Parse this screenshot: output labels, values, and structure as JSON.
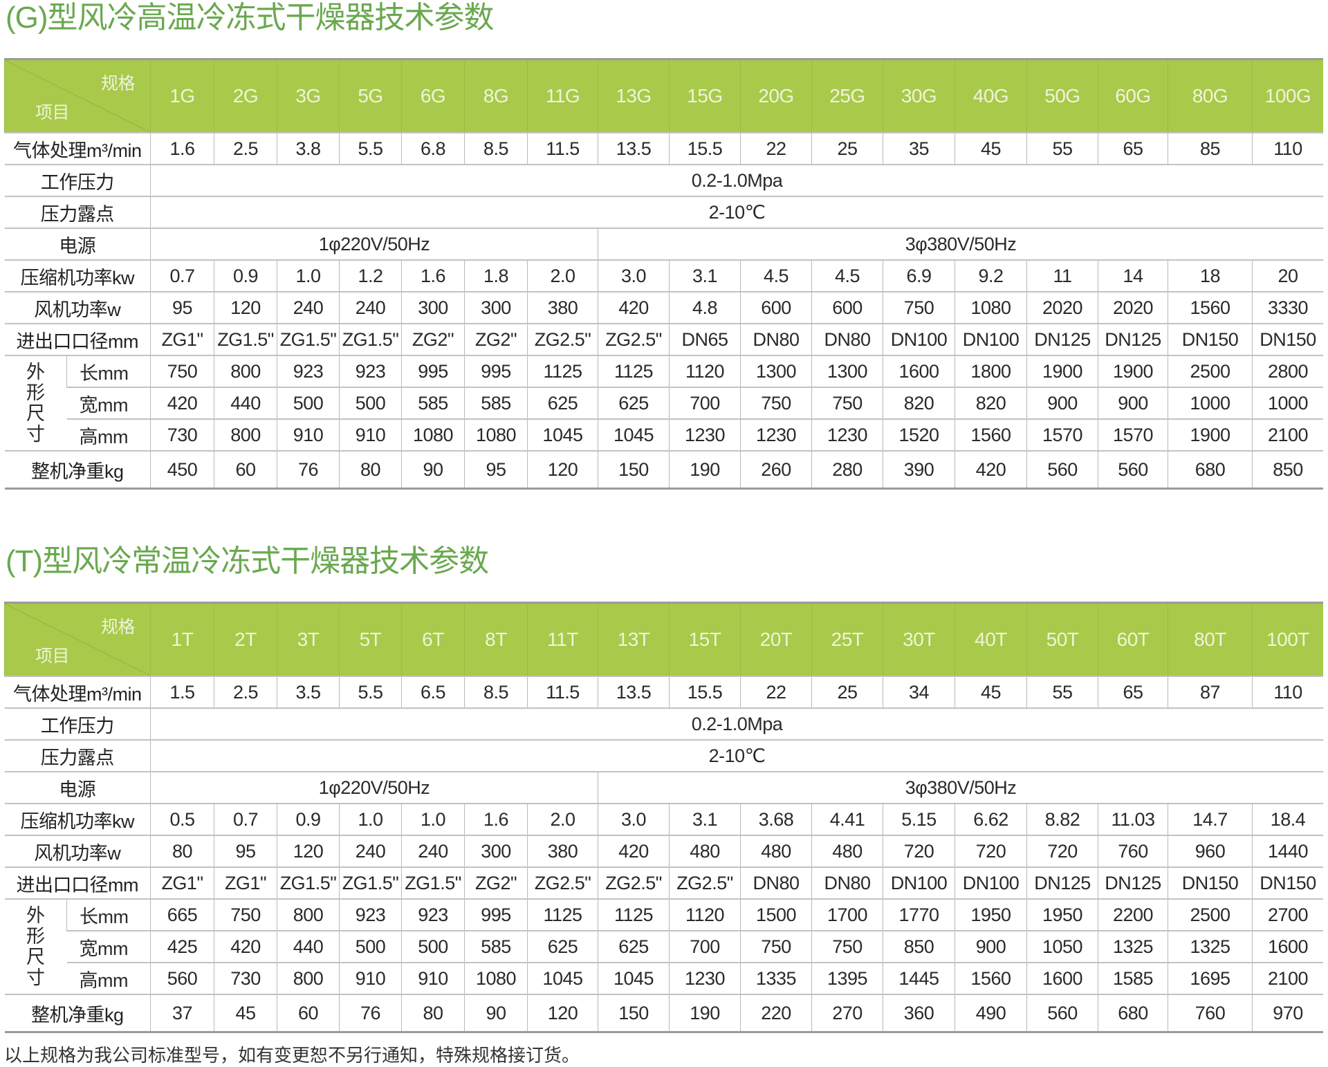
{
  "colors": {
    "title": "#6aa84f",
    "header_bg": "#a9c94b",
    "header_text": "#eef5d8"
  },
  "tables": [
    {
      "title": "(G)型风冷高温冷冻式干燥器技术参数",
      "corner": {
        "spec": "规格",
        "item": "项目"
      },
      "models": [
        "1G",
        "2G",
        "3G",
        "5G",
        "6G",
        "8G",
        "11G",
        "13G",
        "15G",
        "20G",
        "25G",
        "30G",
        "40G",
        "50G",
        "60G",
        "80G",
        "100G"
      ],
      "rows": {
        "flow": {
          "label": "气体处理m³/min",
          "values": [
            "1.6",
            "2.5",
            "3.8",
            "5.5",
            "6.8",
            "8.5",
            "11.5",
            "13.5",
            "15.5",
            "22",
            "25",
            "35",
            "45",
            "55",
            "65",
            "85",
            "110"
          ]
        },
        "pressure": {
          "label": "工作压力",
          "value": "0.2-1.0Mpa"
        },
        "dew_point": {
          "label": "压力露点",
          "value": "2-10℃"
        },
        "power_supply": {
          "label": "电源",
          "single_phase": "1φ220V/50Hz",
          "three_phase": "3φ380V/50Hz"
        },
        "compressor": {
          "label": "压缩机功率kw",
          "values": [
            "0.7",
            "0.9",
            "1.0",
            "1.2",
            "1.6",
            "1.8",
            "2.0",
            "3.0",
            "3.1",
            "4.5",
            "4.5",
            "6.9",
            "9.2",
            "11",
            "14",
            "18",
            "20"
          ]
        },
        "fan": {
          "label": "风机功率w",
          "values": [
            "95",
            "120",
            "240",
            "240",
            "300",
            "300",
            "380",
            "420",
            "4.8",
            "600",
            "600",
            "750",
            "1080",
            "2020",
            "2020",
            "1560",
            "3330"
          ]
        },
        "port": {
          "label": "进出口口径mm",
          "values": [
            "ZG1\"",
            "ZG1.5\"",
            "ZG1.5\"",
            "ZG1.5\"",
            "ZG2\"",
            "ZG2\"",
            "ZG2.5\"",
            "ZG2.5\"",
            "DN65",
            "DN80",
            "DN80",
            "DN100",
            "DN100",
            "DN125",
            "DN125",
            "DN150",
            "DN150"
          ]
        },
        "dimensions": {
          "label": "外形尺寸",
          "length": {
            "label": "长mm",
            "values": [
              "750",
              "800",
              "923",
              "923",
              "995",
              "995",
              "1125",
              "1125",
              "1120",
              "1300",
              "1300",
              "1600",
              "1800",
              "1900",
              "1900",
              "2500",
              "2800"
            ]
          },
          "width": {
            "label": "宽mm",
            "values": [
              "420",
              "440",
              "500",
              "500",
              "585",
              "585",
              "625",
              "625",
              "700",
              "750",
              "750",
              "820",
              "820",
              "900",
              "900",
              "1000",
              "1000"
            ]
          },
          "height": {
            "label": "高mm",
            "values": [
              "730",
              "800",
              "910",
              "910",
              "1080",
              "1080",
              "1045",
              "1045",
              "1230",
              "1230",
              "1230",
              "1520",
              "1560",
              "1570",
              "1570",
              "1900",
              "2100"
            ]
          }
        },
        "weight": {
          "label": "整机净重kg",
          "values": [
            "450",
            "60",
            "76",
            "80",
            "90",
            "95",
            "120",
            "150",
            "190",
            "260",
            "280",
            "390",
            "420",
            "560",
            "560",
            "680",
            "850"
          ]
        }
      }
    },
    {
      "title": "(T)型风冷常温冷冻式干燥器技术参数",
      "corner": {
        "spec": "规格",
        "item": "项目"
      },
      "models": [
        "1T",
        "2T",
        "3T",
        "5T",
        "6T",
        "8T",
        "11T",
        "13T",
        "15T",
        "20T",
        "25T",
        "30T",
        "40T",
        "50T",
        "60T",
        "80T",
        "100T"
      ],
      "rows": {
        "flow": {
          "label": "气体处理m³/min",
          "values": [
            "1.5",
            "2.5",
            "3.5",
            "5.5",
            "6.5",
            "8.5",
            "11.5",
            "13.5",
            "15.5",
            "22",
            "25",
            "34",
            "45",
            "55",
            "65",
            "87",
            "110"
          ]
        },
        "pressure": {
          "label": "工作压力",
          "value": "0.2-1.0Mpa"
        },
        "dew_point": {
          "label": "压力露点",
          "value": "2-10℃"
        },
        "power_supply": {
          "label": "电源",
          "single_phase": "1φ220V/50Hz",
          "three_phase": "3φ380V/50Hz"
        },
        "compressor": {
          "label": "压缩机功率kw",
          "values": [
            "0.5",
            "0.7",
            "0.9",
            "1.0",
            "1.0",
            "1.6",
            "2.0",
            "3.0",
            "3.1",
            "3.68",
            "4.41",
            "5.15",
            "6.62",
            "8.82",
            "11.03",
            "14.7",
            "18.4"
          ]
        },
        "fan": {
          "label": "风机功率w",
          "values": [
            "80",
            "95",
            "120",
            "240",
            "240",
            "300",
            "380",
            "420",
            "480",
            "480",
            "480",
            "720",
            "720",
            "720",
            "760",
            "960",
            "1440"
          ]
        },
        "port": {
          "label": "进出口口径mm",
          "values": [
            "ZG1\"",
            "ZG1\"",
            "ZG1.5\"",
            "ZG1.5\"",
            "ZG1.5\"",
            "ZG2\"",
            "ZG2.5\"",
            "ZG2.5\"",
            "ZG2.5\"",
            "DN80",
            "DN80",
            "DN100",
            "DN100",
            "DN125",
            "DN125",
            "DN150",
            "DN150"
          ]
        },
        "dimensions": {
          "label": "外形尺寸",
          "length": {
            "label": "长mm",
            "values": [
              "665",
              "750",
              "800",
              "923",
              "923",
              "995",
              "1125",
              "1125",
              "1120",
              "1500",
              "1700",
              "1770",
              "1950",
              "1950",
              "2200",
              "2500",
              "2700"
            ]
          },
          "width": {
            "label": "宽mm",
            "values": [
              "425",
              "420",
              "440",
              "500",
              "500",
              "585",
              "625",
              "625",
              "700",
              "750",
              "750",
              "850",
              "900",
              "1050",
              "1325",
              "1325",
              "1600"
            ]
          },
          "height": {
            "label": "高mm",
            "values": [
              "560",
              "730",
              "800",
              "910",
              "910",
              "1080",
              "1045",
              "1045",
              "1230",
              "1335",
              "1395",
              "1445",
              "1560",
              "1600",
              "1585",
              "1695",
              "2100"
            ]
          }
        },
        "weight": {
          "label": "整机净重kg",
          "values": [
            "37",
            "45",
            "60",
            "76",
            "80",
            "90",
            "120",
            "150",
            "190",
            "220",
            "270",
            "360",
            "490",
            "560",
            "680",
            "760",
            "970"
          ]
        }
      }
    }
  ],
  "footnote": "以上规格为我公司标准型号，如有变更恕不另行通知，特殊规格接订货。"
}
